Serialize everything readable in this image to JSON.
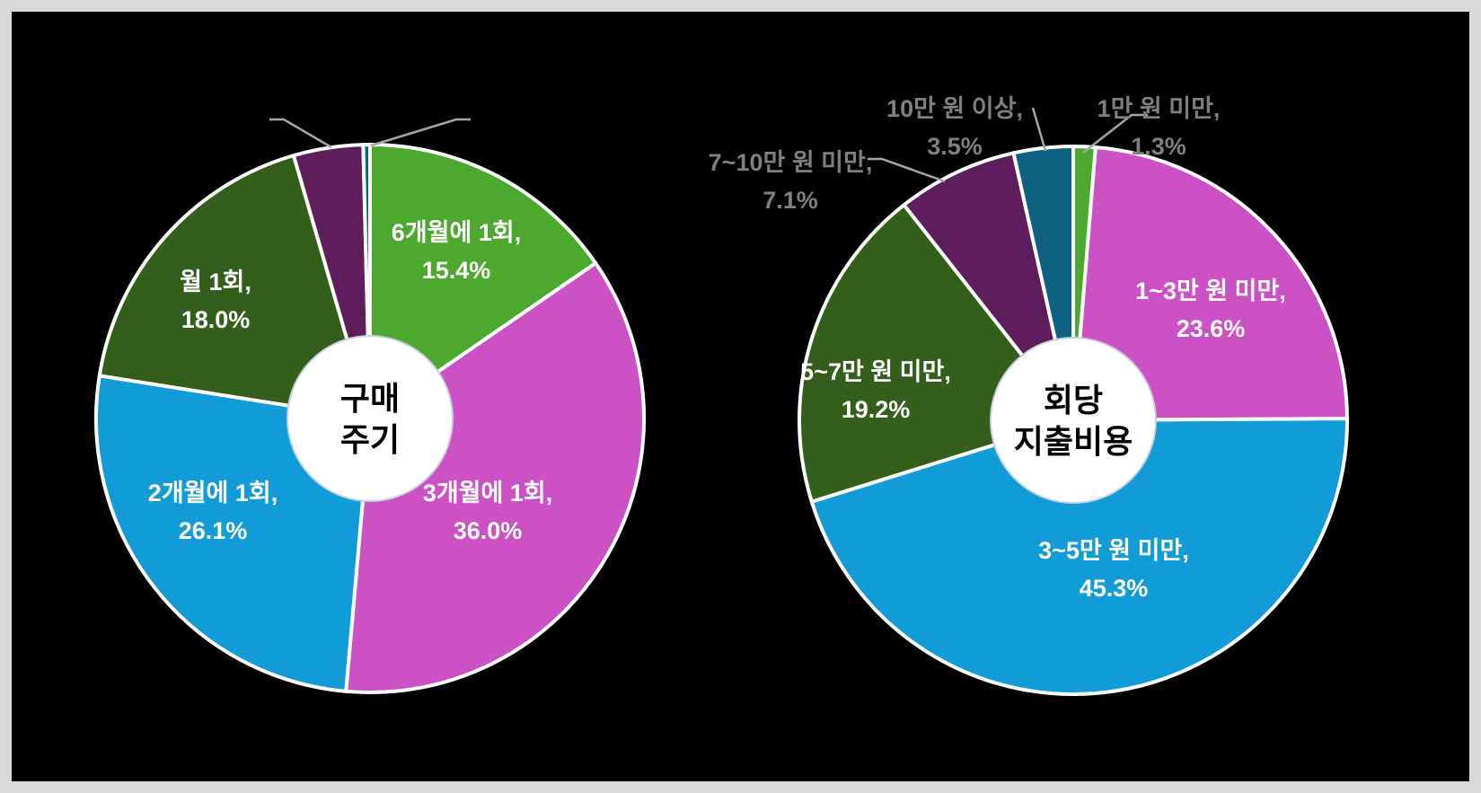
{
  "frame": {
    "background": "#000000",
    "border_color": "#D9D9D9"
  },
  "style": {
    "separator_color": "#FFFFFF",
    "inside_label_color": "#FFFFFF",
    "outside_label_color": "#7F7F7F",
    "leader_line_color": "#A6A6A6",
    "hole_fill": "#FFFFFF",
    "hole_rim_color": "#C9D0DE",
    "center_label_color": "#000000"
  },
  "chart_data": [
    {
      "type": "pie",
      "donut": true,
      "direction": "clockwise",
      "start_angle_deg": 0,
      "center_label_lines": [
        "구매",
        "주기"
      ],
      "slices": [
        {
          "label": "6개월에 1회",
          "value": 15.4,
          "color": "#4CA82E",
          "placement": "inside",
          "label_visible": true
        },
        {
          "label": "3개월에 1회",
          "value": 36.0,
          "color": "#CB51C4",
          "placement": "inside",
          "label_visible": true
        },
        {
          "label": "2개월에 1회",
          "value": 26.1,
          "color": "#119CD8",
          "placement": "inside",
          "label_visible": true
        },
        {
          "label": "월 1회",
          "value": 18.0,
          "color": "#335F1B",
          "placement": "inside",
          "label_visible": true
        },
        {
          "label": "",
          "value": 4.1,
          "color": "#5E1E5C",
          "placement": "hidden",
          "label_visible": false,
          "estimated": true
        },
        {
          "label": "",
          "value": 0.4,
          "color": "#0F6183",
          "placement": "hidden",
          "label_visible": false,
          "estimated": true
        }
      ]
    },
    {
      "type": "pie",
      "donut": true,
      "direction": "clockwise",
      "start_angle_deg": 0,
      "center_label_lines": [
        "회당",
        "지출비용"
      ],
      "slices": [
        {
          "label": "1만 원 미만",
          "value": 1.3,
          "color": "#4CA82E",
          "placement": "outside",
          "label_visible": true
        },
        {
          "label": "1~3만 원 미만",
          "value": 23.6,
          "color": "#CB51C4",
          "placement": "inside",
          "label_visible": true
        },
        {
          "label": "3~5만 원 미만",
          "value": 45.3,
          "color": "#119CD8",
          "placement": "inside",
          "label_visible": true
        },
        {
          "label": "5~7만 원 미만",
          "value": 19.2,
          "color": "#335F1B",
          "placement": "inside",
          "label_visible": true
        },
        {
          "label": "7~10만 원 미만",
          "value": 7.1,
          "color": "#5E1E5C",
          "placement": "outside",
          "label_visible": true
        },
        {
          "label": "10만 원 이상",
          "value": 3.5,
          "color": "#0F6183",
          "placement": "outside",
          "label_visible": true
        }
      ]
    }
  ]
}
